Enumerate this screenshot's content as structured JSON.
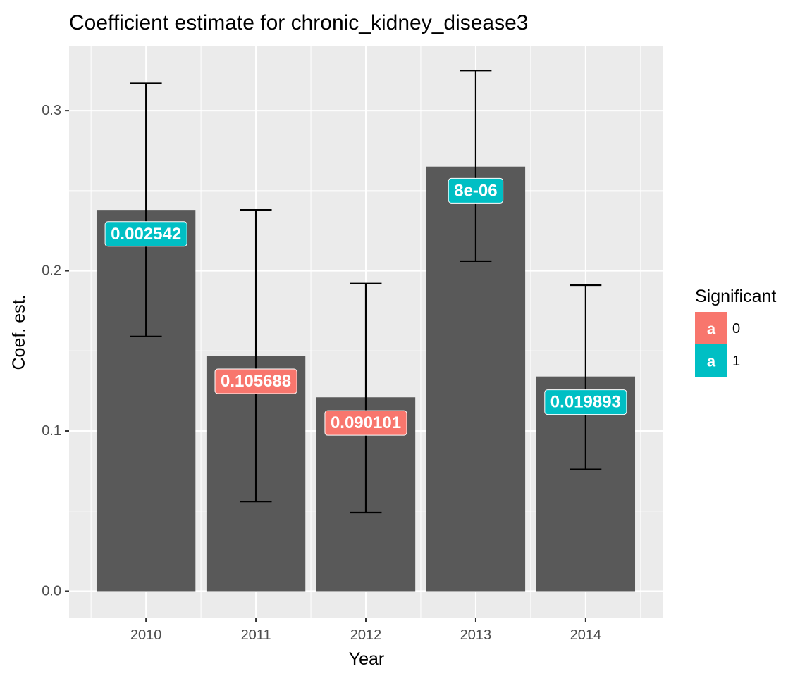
{
  "chart_data": {
    "type": "bar",
    "title": "Coefficient estimate for chronic_kidney_disease3",
    "xlabel": "Year",
    "ylabel": "Coef. est.",
    "categories": [
      "2010",
      "2011",
      "2012",
      "2013",
      "2014"
    ],
    "values": [
      0.238,
      0.147,
      0.121,
      0.265,
      0.134
    ],
    "error_bars": [
      {
        "lower": 0.159,
        "upper": 0.317
      },
      {
        "lower": 0.056,
        "upper": 0.238
      },
      {
        "lower": 0.049,
        "upper": 0.192
      },
      {
        "lower": 0.206,
        "upper": 0.325
      },
      {
        "lower": 0.076,
        "upper": 0.191
      }
    ],
    "labels": [
      "0.002542",
      "0.105688",
      "0.090101",
      "8e-06",
      "0.019893"
    ],
    "label_y": [
      0.223,
      0.131,
      0.105,
      0.25,
      0.118
    ],
    "significant": [
      "1",
      "0",
      "0",
      "1",
      "1"
    ],
    "yticks": [
      0.0,
      0.1,
      0.2,
      0.3
    ],
    "ytick_labels": [
      "0.0",
      "0.1",
      "0.2",
      "0.3"
    ],
    "ylim": [
      -0.0165,
      0.3405
    ],
    "grid": true,
    "bar_color": "#595959",
    "panel_color": "#ebebeb",
    "legend": {
      "title": "Significant",
      "position": "right",
      "key_glyph": "a",
      "items": [
        {
          "label": "0",
          "color": "#f8766d"
        },
        {
          "label": "1",
          "color": "#00bfc4"
        }
      ]
    }
  }
}
